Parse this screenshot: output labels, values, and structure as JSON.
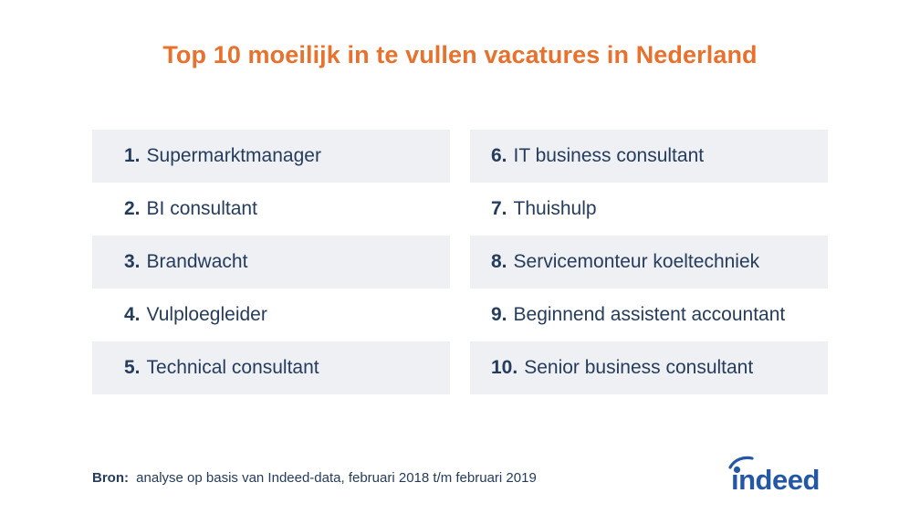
{
  "title": "Top 10 moeilijk in te vullen vacatures in Nederland",
  "left_column": [
    {
      "number": "1.",
      "label": "Supermarktmanager"
    },
    {
      "number": "2.",
      "label": "BI consultant"
    },
    {
      "number": "3.",
      "label": "Brandwacht"
    },
    {
      "number": "4.",
      "label": "Vulploegleider"
    },
    {
      "number": "5.",
      "label": "Technical consultant"
    }
  ],
  "right_column": [
    {
      "number": "6.",
      "label": "IT business consultant"
    },
    {
      "number": "7.",
      "label": "Thuishulp"
    },
    {
      "number": "8.",
      "label": "Servicemonteur koeltechniek"
    },
    {
      "number": "9.",
      "label": "Beginnend assistent accountant"
    },
    {
      "number": "10.",
      "label": "Senior business consultant"
    }
  ],
  "footer": {
    "source_label": "Bron:",
    "source_text": "analyse op basis van Indeed-data, februari 2018 t/m februari 2019"
  },
  "logo": {
    "text": "indeed",
    "icon": "indeed-logo",
    "color": "#2557a7"
  },
  "colors": {
    "title": "#e8712d",
    "text": "#253c5c",
    "row_shade": "#eef0f4"
  }
}
